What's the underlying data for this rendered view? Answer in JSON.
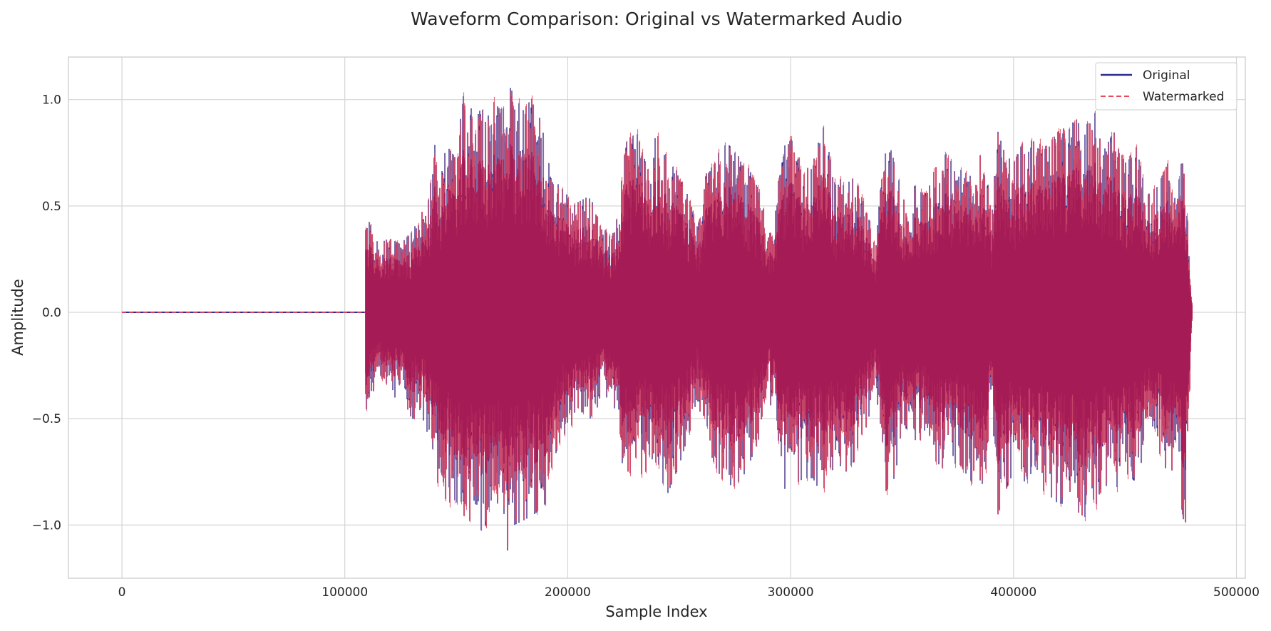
{
  "chart_data": {
    "type": "line",
    "title": "Waveform Comparison: Original vs Watermarked Audio",
    "xlabel": "Sample Index",
    "ylabel": "Amplitude",
    "xlim": [
      -24000,
      504000
    ],
    "ylim": [
      -1.25,
      1.2
    ],
    "xticks": [
      0,
      100000,
      200000,
      300000,
      400000,
      500000
    ],
    "xtick_labels": [
      "0",
      "100000",
      "200000",
      "300000",
      "400000",
      "500000"
    ],
    "yticks": [
      -1.0,
      -0.5,
      0.0,
      0.5,
      1.0
    ],
    "ytick_labels": [
      "−1.0",
      "−0.5",
      "0.0",
      "0.5",
      "1.0"
    ],
    "grid": true,
    "legend_position": "top-right",
    "x_range": [
      0,
      480000
    ],
    "silence_until": 109500,
    "series": [
      {
        "name": "Original",
        "color": "#2d2f8f",
        "style": "solid"
      },
      {
        "name": "Watermarked",
        "color": "#e8495f",
        "style": "dashed"
      }
    ],
    "fill_color": "#a51b55",
    "envelope": {
      "x": [
        109500,
        112000,
        115000,
        120000,
        125000,
        130000,
        135000,
        138000,
        140000,
        143000,
        146000,
        150000,
        153000,
        156000,
        160000,
        163000,
        166000,
        170000,
        173000,
        176000,
        180000,
        185000,
        190000,
        193000,
        196000,
        200000,
        205000,
        210000,
        215000,
        220000,
        223000,
        226000,
        230000,
        235000,
        240000,
        245000,
        250000,
        255000,
        258000,
        262000,
        266000,
        270000,
        275000,
        280000,
        285000,
        288000,
        290000,
        293000,
        296000,
        300000,
        303000,
        306000,
        310000,
        315000,
        320000,
        325000,
        330000,
        335000,
        338000,
        342000,
        346000,
        350000,
        355000,
        360000,
        365000,
        370000,
        375000,
        380000,
        385000,
        388000,
        390000,
        393000,
        396000,
        400000,
        405000,
        410000,
        415000,
        420000,
        425000,
        430000,
        435000,
        440000,
        445000,
        450000,
        455000,
        460000,
        465000,
        470000,
        474000,
        477000,
        480000
      ],
      "upper": [
        0.46,
        0.4,
        0.32,
        0.35,
        0.32,
        0.38,
        0.48,
        0.55,
        0.8,
        0.7,
        0.78,
        0.72,
        1.02,
        0.95,
        1.0,
        0.92,
        1.0,
        0.95,
        1.08,
        1.02,
        0.95,
        1.02,
        0.8,
        0.62,
        0.6,
        0.55,
        0.52,
        0.55,
        0.4,
        0.36,
        0.48,
        0.88,
        0.88,
        0.7,
        0.85,
        0.72,
        0.65,
        0.52,
        0.4,
        0.65,
        0.7,
        0.82,
        0.75,
        0.7,
        0.6,
        0.48,
        0.35,
        0.45,
        0.78,
        0.82,
        0.75,
        0.65,
        0.72,
        0.88,
        0.6,
        0.68,
        0.6,
        0.45,
        0.3,
        0.8,
        0.75,
        0.55,
        0.6,
        0.55,
        0.68,
        0.75,
        0.65,
        0.72,
        0.8,
        0.7,
        0.45,
        0.85,
        0.75,
        0.7,
        0.82,
        0.8,
        0.78,
        0.85,
        0.88,
        0.92,
        1.02,
        0.75,
        0.85,
        0.7,
        0.78,
        0.55,
        0.6,
        0.72,
        0.78,
        0.65,
        0.05
      ],
      "lower": [
        -0.46,
        -0.4,
        -0.3,
        -0.42,
        -0.38,
        -0.5,
        -0.5,
        -0.6,
        -0.78,
        -0.82,
        -0.9,
        -0.88,
        -1.02,
        -0.98,
        -1.04,
        -1.0,
        -1.05,
        -0.95,
        -1.12,
        -1.0,
        -0.98,
        -0.95,
        -0.9,
        -0.72,
        -0.62,
        -0.55,
        -0.5,
        -0.5,
        -0.42,
        -0.38,
        -0.6,
        -0.82,
        -0.78,
        -0.75,
        -0.75,
        -0.85,
        -0.72,
        -0.55,
        -0.4,
        -0.6,
        -0.72,
        -0.8,
        -0.82,
        -0.75,
        -0.62,
        -0.5,
        -0.38,
        -0.55,
        -0.82,
        -0.85,
        -0.8,
        -0.78,
        -0.78,
        -0.88,
        -0.7,
        -0.75,
        -0.68,
        -0.5,
        -0.3,
        -0.85,
        -0.8,
        -0.6,
        -0.6,
        -0.6,
        -0.7,
        -0.75,
        -0.7,
        -0.78,
        -0.85,
        -0.72,
        -0.45,
        -0.95,
        -0.85,
        -0.75,
        -0.85,
        -0.82,
        -0.85,
        -0.9,
        -0.9,
        -0.95,
        -0.98,
        -0.8,
        -0.85,
        -0.75,
        -0.8,
        -0.6,
        -0.65,
        -0.78,
        -0.82,
        -1.03,
        -0.05
      ]
    }
  }
}
